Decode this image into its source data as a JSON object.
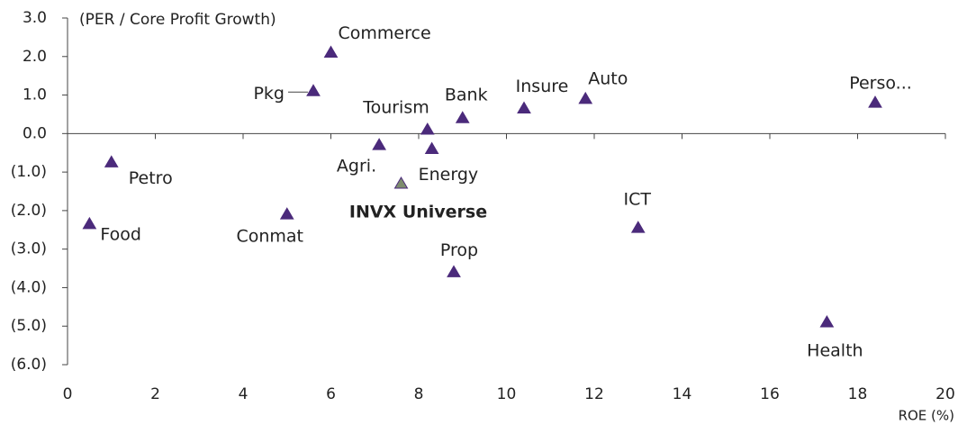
{
  "chart_data": {
    "type": "scatter",
    "y_label": "(PER / Core Profit Growth)",
    "x_label": "ROE (%)",
    "labels": [
      "Commerce",
      "Pkg",
      "Tourism",
      "Bank",
      "Insure",
      "Auto",
      "Perso...",
      "Agri.",
      "Energy",
      "Petro",
      "INVX Universe",
      "Food",
      "Conmat",
      "ICT",
      "Prop",
      "Health"
    ],
    "x": [
      6.0,
      5.6,
      8.2,
      9.0,
      10.4,
      11.8,
      18.4,
      7.1,
      8.3,
      1.0,
      7.6,
      0.5,
      5.0,
      13.0,
      8.8,
      17.3
    ],
    "values": [
      2.1,
      1.1,
      0.1,
      0.4,
      0.65,
      0.9,
      0.8,
      -0.3,
      -0.4,
      -0.75,
      -1.3,
      -2.35,
      -2.1,
      -2.45,
      -3.6,
      -4.9
    ],
    "point_colors": [
      "#4b2a7b",
      "#4b2a7b",
      "#4b2a7b",
      "#4b2a7b",
      "#4b2a7b",
      "#4b2a7b",
      "#4b2a7b",
      "#4b2a7b",
      "#4b2a7b",
      "#4b2a7b",
      "#7d8c6e",
      "#4b2a7b",
      "#4b2a7b",
      "#4b2a7b",
      "#4b2a7b",
      "#4b2a7b"
    ],
    "label_bold": [
      false,
      false,
      false,
      false,
      false,
      false,
      false,
      false,
      false,
      false,
      true,
      false,
      false,
      false,
      false,
      false
    ],
    "xlim": [
      0,
      20
    ],
    "xticks": [
      0,
      2,
      4,
      6,
      8,
      10,
      12,
      14,
      16,
      18,
      20
    ],
    "ylim": [
      -6,
      3
    ],
    "yticks": [
      {
        "value": 3,
        "label": "3.0"
      },
      {
        "value": 2,
        "label": "2.0"
      },
      {
        "value": 1,
        "label": "1.0"
      },
      {
        "value": 0,
        "label": "0.0"
      },
      {
        "value": -1,
        "label": "(1.0)"
      },
      {
        "value": -2,
        "label": "(2.0)"
      },
      {
        "value": -3,
        "label": "(3.0)"
      },
      {
        "value": -4,
        "label": "(4.0)"
      },
      {
        "value": -5,
        "label": "(5.0)"
      },
      {
        "value": -6,
        "label": "(6.0)"
      }
    ]
  }
}
